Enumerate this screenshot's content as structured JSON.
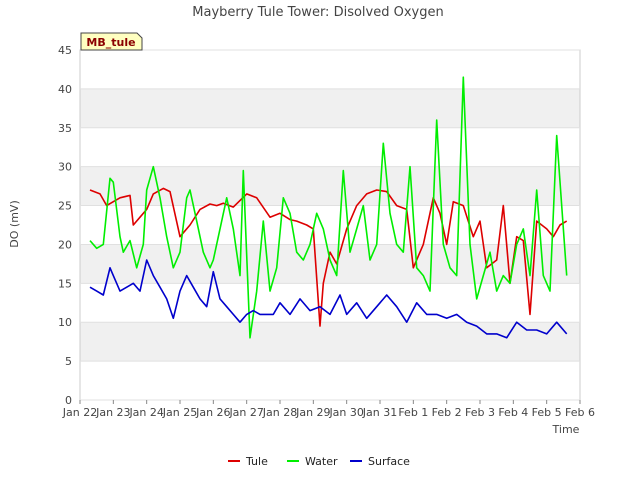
{
  "chart_data": {
    "type": "line",
    "title": "Mayberry Tule Tower: Disolved Oxygen",
    "xlabel": "Time",
    "ylabel": "DO (mV)",
    "site_label": "MB_tule",
    "ylim": [
      0,
      45
    ],
    "yticks": [
      0,
      5,
      10,
      15,
      20,
      25,
      30,
      35,
      40,
      45
    ],
    "xlim": [
      0,
      15
    ],
    "xtick_labels": [
      "Jan 22",
      "Jan 23",
      "Jan 24",
      "Jan 25",
      "Jan 26",
      "Jan 27",
      "Jan 28",
      "Jan 29",
      "Jan 30",
      "Jan 31",
      "Feb 1",
      "Feb 2",
      "Feb 3",
      "Feb 4",
      "Feb 5",
      "Feb 6"
    ],
    "series": [
      {
        "name": "Tule",
        "color": "#dd0000",
        "x": [
          0.3,
          0.6,
          0.8,
          1.0,
          1.2,
          1.5,
          1.6,
          1.8,
          2.0,
          2.2,
          2.5,
          2.7,
          3.0,
          3.3,
          3.6,
          3.9,
          4.1,
          4.3,
          4.6,
          5.0,
          5.3,
          5.7,
          6.0,
          6.3,
          6.5,
          6.8,
          7.0,
          7.2,
          7.3,
          7.5,
          7.7,
          8.0,
          8.3,
          8.6,
          8.9,
          9.2,
          9.5,
          9.8,
          10.0,
          10.3,
          10.6,
          10.8,
          11.0,
          11.2,
          11.5,
          11.8,
          12.0,
          12.2,
          12.5,
          12.7,
          12.9,
          13.1,
          13.3,
          13.5,
          13.7,
          14.0,
          14.2,
          14.4,
          14.6
        ],
        "y": [
          27,
          26.5,
          25,
          25.5,
          26,
          26.3,
          22.5,
          23.5,
          24.5,
          26.5,
          27.2,
          26.8,
          21,
          22.5,
          24.5,
          25.2,
          25,
          25.3,
          24.8,
          26.5,
          26,
          23.5,
          24,
          23.2,
          23,
          22.5,
          22,
          9.5,
          15,
          19,
          17.5,
          22,
          25,
          26.5,
          27,
          26.8,
          25,
          24.5,
          17,
          20,
          26,
          24,
          20,
          25.5,
          25,
          21,
          23,
          17,
          18,
          25,
          15,
          21,
          20.5,
          11,
          23,
          22,
          21,
          22.5,
          23
        ]
      },
      {
        "name": "Water",
        "color": "#00ee00",
        "x": [
          0.3,
          0.5,
          0.7,
          0.9,
          1.0,
          1.2,
          1.3,
          1.5,
          1.7,
          1.9,
          2.0,
          2.2,
          2.4,
          2.6,
          2.8,
          3.0,
          3.2,
          3.3,
          3.5,
          3.7,
          3.9,
          4.0,
          4.2,
          4.4,
          4.6,
          4.8,
          4.9,
          5.1,
          5.3,
          5.5,
          5.7,
          5.9,
          6.1,
          6.3,
          6.5,
          6.7,
          6.9,
          7.1,
          7.3,
          7.5,
          7.7,
          7.9,
          8.1,
          8.3,
          8.5,
          8.7,
          8.9,
          9.1,
          9.3,
          9.5,
          9.7,
          9.9,
          10.1,
          10.3,
          10.5,
          10.7,
          10.9,
          11.1,
          11.3,
          11.5,
          11.7,
          11.9,
          12.1,
          12.3,
          12.5,
          12.7,
          12.9,
          13.1,
          13.3,
          13.5,
          13.7,
          13.9,
          14.1,
          14.3,
          14.6
        ],
        "y": [
          20.5,
          19.5,
          20,
          28.5,
          28,
          21,
          19,
          20.5,
          17,
          20,
          27,
          30,
          26,
          21,
          17,
          19,
          26,
          27,
          23,
          19,
          17,
          18,
          22,
          26,
          22,
          16,
          29.5,
          8,
          14,
          23,
          14,
          17,
          26,
          24,
          19,
          18,
          20,
          24,
          22,
          18,
          16,
          29.5,
          19,
          22,
          25,
          18,
          20,
          33,
          24,
          20,
          19,
          30,
          17,
          16,
          14,
          36,
          20,
          17,
          16,
          41.5,
          20,
          13,
          16,
          19,
          14,
          16,
          15,
          20,
          22,
          16,
          27,
          16,
          14,
          34,
          16
        ]
      },
      {
        "name": "Surface",
        "color": "#0000cc",
        "x": [
          0.3,
          0.5,
          0.7,
          0.9,
          1.0,
          1.2,
          1.4,
          1.6,
          1.8,
          2.0,
          2.2,
          2.4,
          2.6,
          2.8,
          3.0,
          3.2,
          3.4,
          3.6,
          3.8,
          4.0,
          4.2,
          4.4,
          4.6,
          4.8,
          5.0,
          5.2,
          5.4,
          5.6,
          5.8,
          6.0,
          6.3,
          6.6,
          6.9,
          7.2,
          7.5,
          7.8,
          8.0,
          8.3,
          8.6,
          8.9,
          9.2,
          9.5,
          9.8,
          10.1,
          10.4,
          10.7,
          11.0,
          11.3,
          11.6,
          11.9,
          12.2,
          12.5,
          12.8,
          13.1,
          13.4,
          13.7,
          14.0,
          14.3,
          14.6
        ],
        "y": [
          14.5,
          14,
          13.5,
          17,
          16,
          14,
          14.5,
          15,
          14,
          18,
          16,
          14.5,
          13,
          10.5,
          14,
          16,
          14.5,
          13,
          12,
          16.5,
          13,
          12,
          11,
          10,
          11,
          11.5,
          11,
          11,
          11,
          12.5,
          11,
          13,
          11.5,
          12,
          11,
          13.5,
          11,
          12.5,
          10.5,
          12,
          13.5,
          12,
          10,
          12.5,
          11,
          11,
          10.5,
          11,
          10,
          9.5,
          8.5,
          8.5,
          8,
          10,
          9,
          9,
          8.5,
          10,
          8.5
        ]
      }
    ]
  }
}
